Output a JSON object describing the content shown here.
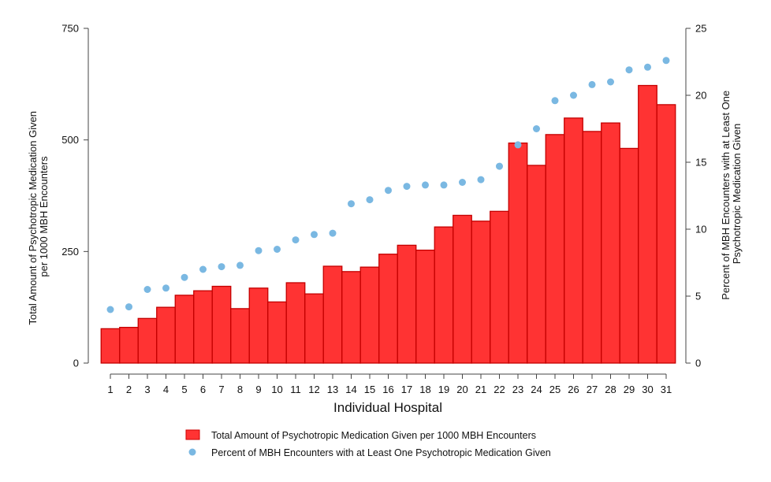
{
  "chart_data": {
    "type": "bar",
    "xlabel": "Individual Hospital",
    "ylabel_left": [
      "Total Amount of Psychotropic Medication Given",
      "per 1000 MBH Encounters"
    ],
    "ylabel_right": [
      "Percent of MBH Encounters with at Least One",
      "Psychotropic Medication Given"
    ],
    "ylim_left": [
      0,
      750
    ],
    "yticks_left": [
      0,
      250,
      500,
      750
    ],
    "ylim_right": [
      0,
      25
    ],
    "yticks_right": [
      0,
      5,
      10,
      15,
      20,
      25
    ],
    "categories": [
      "1",
      "2",
      "3",
      "4",
      "5",
      "6",
      "7",
      "8",
      "9",
      "10",
      "11",
      "12",
      "13",
      "14",
      "15",
      "16",
      "17",
      "18",
      "19",
      "20",
      "21",
      "22",
      "23",
      "24",
      "25",
      "26",
      "27",
      "28",
      "29",
      "30",
      "31"
    ],
    "series": [
      {
        "name": "Total Amount of Psychotropic Medication Given per 1000 MBH Encounters",
        "type": "bar",
        "axis": "left",
        "color": "#ff3333",
        "values": [
          77,
          80,
          100,
          125,
          152,
          162,
          172,
          122,
          168,
          137,
          180,
          155,
          217,
          205,
          215,
          244,
          264,
          253,
          305,
          331,
          318,
          340,
          493,
          443,
          512,
          549,
          519,
          538,
          481,
          622,
          579
        ]
      },
      {
        "name": "Percent of MBH Encounters with at Least One Psychotropic Medication Given",
        "type": "scatter",
        "axis": "right",
        "color": "#7ab8e2",
        "values": [
          4.0,
          4.2,
          5.5,
          5.6,
          6.4,
          7.0,
          7.2,
          7.3,
          8.4,
          8.5,
          9.2,
          9.6,
          9.7,
          11.9,
          12.2,
          12.9,
          13.2,
          13.3,
          13.3,
          13.5,
          13.7,
          14.7,
          16.3,
          17.5,
          19.6,
          20.0,
          20.8,
          21.0,
          21.9,
          22.1,
          22.6
        ]
      }
    ],
    "legend_position": "bottom-center"
  }
}
